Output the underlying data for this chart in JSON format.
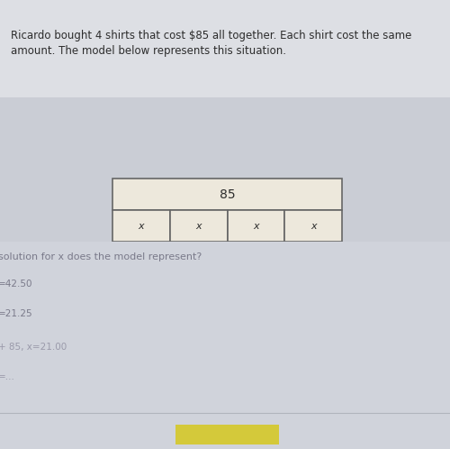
{
  "bg_color": "#cacdd5",
  "text_color_dark": "#2c2c2c",
  "text_color_gray": "#7a7a8a",
  "text_color_light": "#9a9aaa",
  "paragraph_line1": "Ricardo bought 4 shirts that cost $85 all together. Each shirt cost the same",
  "paragraph_line2": "amount. The model below represents this situation.",
  "paragraph_fontsize": 8.5,
  "table_top_label": "85",
  "table_cell_label": "x",
  "table_num_cells": 4,
  "question_text": "solution for x does the model represent?",
  "question_fontsize": 8.0,
  "answer_a": "=42.50",
  "answer_b": "=21.25",
  "answer_c": "+ 85, x=21.00",
  "answer_d": "=...",
  "table_border_color": "#666666",
  "table_fill_color": "#ede8dc",
  "bottom_bar_color": "#d4c93a",
  "top_bar_color": "#e0ddd8"
}
